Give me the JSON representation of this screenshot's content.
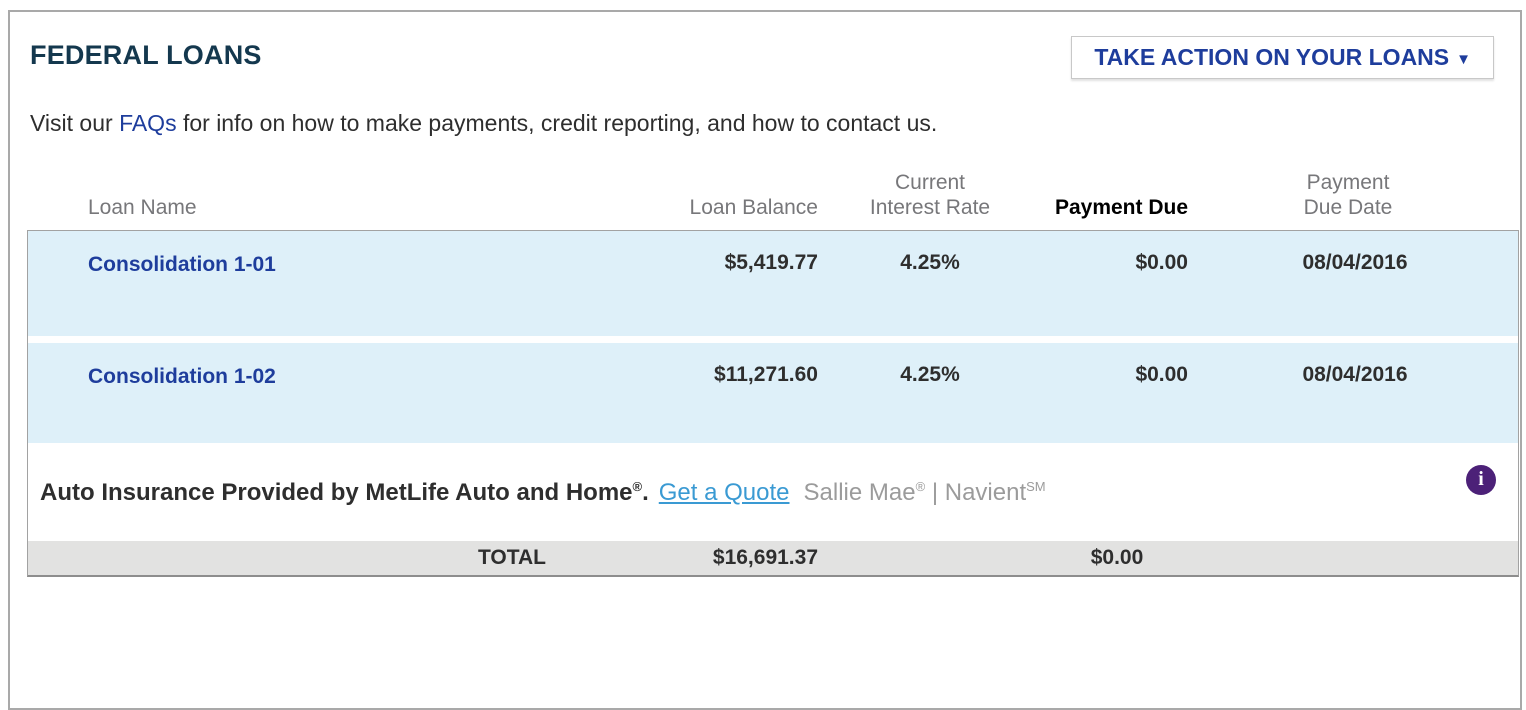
{
  "panel": {
    "title": "FEDERAL LOANS",
    "action_button": {
      "label": "TAKE ACTION ON YOUR LOANS",
      "caret": "▼"
    },
    "intro": {
      "pre": "Visit our ",
      "link": "FAQs",
      "post": " for info on how to make payments, credit reporting, and how to contact us."
    }
  },
  "table": {
    "headers": {
      "loan_name": "Loan Name",
      "loan_balance": "Loan Balance",
      "interest_rate": "Current Interest Rate",
      "payment_due": "Payment Due",
      "due_date": "Payment Due Date"
    },
    "rows": [
      {
        "name": "Consolidation 1-01",
        "balance": "$5,419.77",
        "rate": "4.25%",
        "payment_due": "$0.00",
        "due_date": "08/04/2016"
      },
      {
        "name": "Consolidation 1-02",
        "balance": "$11,271.60",
        "rate": "4.25%",
        "payment_due": "$0.00",
        "due_date": "08/04/2016"
      }
    ],
    "total": {
      "label": "TOTAL",
      "balance": "$16,691.37",
      "payment_due": "$0.00"
    }
  },
  "promo": {
    "lead": "Auto Insurance Provided by MetLife Auto and Home",
    "lead_mark": "®",
    "lead_period": ".",
    "quote_link": "Get a Quote",
    "brand1": "Sallie Mae",
    "brand1_mark": "®",
    "separator": " | ",
    "brand2": "Navient",
    "brand2_mark": "SM",
    "info_glyph": "i"
  },
  "colors": {
    "title_navy": "#14384e",
    "link_blue": "#1e3d9c",
    "row_light_blue": "#def0f9",
    "quote_blue": "#3a9ad3",
    "header_gray": "#77777a",
    "brand_gray": "#9b9b9b",
    "total_gray": "#e2e2e1",
    "info_purple": "#4c2178"
  }
}
